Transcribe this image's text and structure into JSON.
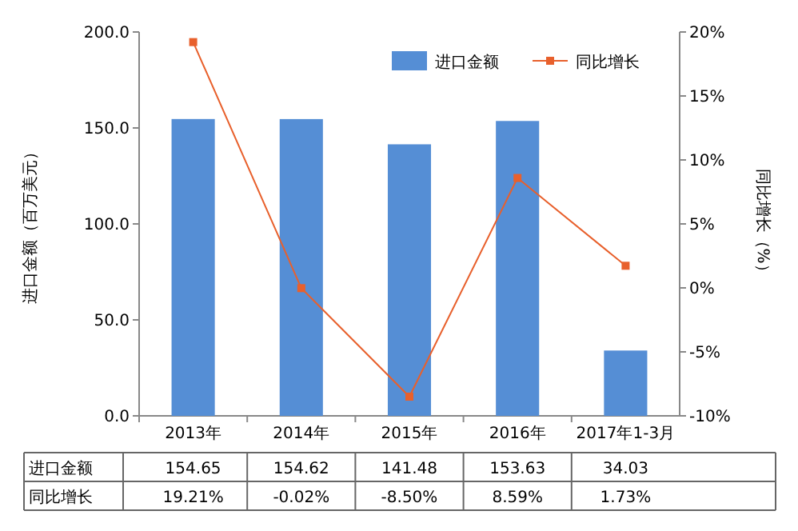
{
  "chart_data": {
    "type": "bar",
    "categories": [
      "2013年",
      "2014年",
      "2015年",
      "2016年",
      "2017年1-3月"
    ],
    "series": [
      {
        "name": "进口金额",
        "color": "#558ed5",
        "values": [
          154.65,
          154.62,
          141.48,
          153.63,
          34.03
        ],
        "value_labels": [
          "154.65",
          "154.62",
          "141.48",
          "153.63",
          "34.03"
        ]
      },
      {
        "name": "同比增长",
        "type": "line",
        "axis": "y2",
        "color": "#e8602c",
        "marker": "square",
        "values": [
          19.21,
          -0.02,
          -8.5,
          8.59,
          1.73
        ],
        "value_labels": [
          "19.21%",
          "-0.02%",
          "-8.50%",
          "8.59%",
          "1.73%"
        ]
      }
    ],
    "ylabel": "进口金额（百万美元）",
    "y2label": "同比增长（%）",
    "ylim": [
      0,
      200
    ],
    "yticks": [
      {
        "value": 0,
        "label": "0.0"
      },
      {
        "value": 50,
        "label": "50.0"
      },
      {
        "value": 100,
        "label": "100.0"
      },
      {
        "value": 150,
        "label": "150.0"
      },
      {
        "value": 200,
        "label": "200.0"
      }
    ],
    "y2lim": [
      -10,
      20
    ],
    "y2ticks": [
      {
        "value": -10,
        "label": "-10%"
      },
      {
        "value": -5,
        "label": "-5%"
      },
      {
        "value": 0,
        "label": "0%"
      },
      {
        "value": 5,
        "label": "5%"
      },
      {
        "value": 10,
        "label": "10%"
      },
      {
        "value": 15,
        "label": "15%"
      },
      {
        "value": 20,
        "label": "20%"
      }
    ],
    "legend": "top right"
  }
}
